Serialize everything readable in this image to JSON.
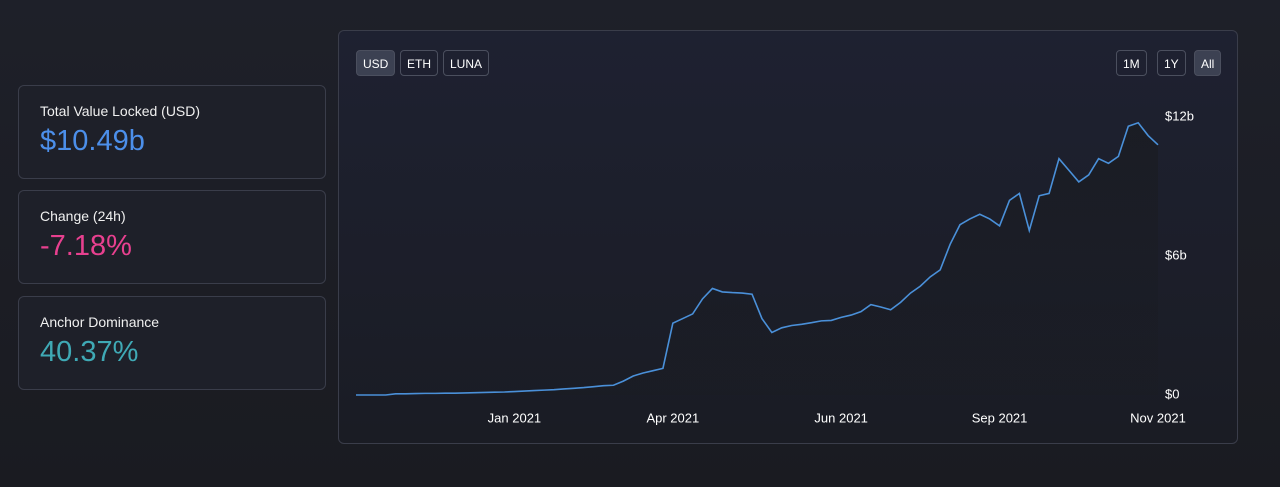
{
  "stats": [
    {
      "label": "Total Value Locked (USD)",
      "value": "$10.49b"
    },
    {
      "label": "Change (24h)",
      "value": "-7.18%"
    },
    {
      "label": "Anchor Dominance",
      "value": "40.37%"
    }
  ],
  "currency_buttons": [
    "USD",
    "ETH",
    "LUNA"
  ],
  "range_buttons": [
    "1M",
    "1Y",
    "All"
  ],
  "chart_data": {
    "type": "line",
    "series": [
      {
        "color": "#4a90d9",
        "values": [
          0,
          0,
          0,
          0,
          0.05,
          0.05,
          0.06,
          0.07,
          0.07,
          0.08,
          0.08,
          0.09,
          0.1,
          0.11,
          0.12,
          0.13,
          0.15,
          0.17,
          0.19,
          0.21,
          0.23,
          0.26,
          0.29,
          0.32,
          0.36,
          0.4,
          0.42,
          0.6,
          0.82,
          0.95,
          1.05,
          1.15,
          3.1,
          3.3,
          3.5,
          4.15,
          4.6,
          4.45,
          4.42,
          4.4,
          4.35,
          3.3,
          2.7,
          2.9,
          3.0,
          3.05,
          3.12,
          3.2,
          3.22,
          3.35,
          3.45,
          3.6,
          3.9,
          3.8,
          3.68,
          4.0,
          4.4,
          4.7,
          5.1,
          5.4,
          6.5,
          7.35,
          7.6,
          7.8,
          7.6,
          7.3,
          8.4,
          8.7,
          7.1,
          8.6,
          8.7,
          10.2,
          9.7,
          9.2,
          9.5,
          10.2,
          10.0,
          10.3,
          11.6,
          11.75,
          11.2,
          10.8
        ]
      }
    ],
    "xlim": [
      0,
      81
    ],
    "xticks": [
      {
        "value": 16,
        "label": "Jan 2021"
      },
      {
        "value": 32,
        "label": "Apr 2021"
      },
      {
        "value": 49,
        "label": "Jun 2021"
      },
      {
        "value": 65,
        "label": "Sep 2021"
      },
      {
        "value": 81,
        "label": "Nov 2021"
      }
    ],
    "ylim": [
      0,
      12
    ],
    "yticks": [
      {
        "value": 0,
        "label": "$0"
      },
      {
        "value": 6,
        "label": "$6b"
      },
      {
        "value": 12,
        "label": "$12b"
      }
    ]
  }
}
